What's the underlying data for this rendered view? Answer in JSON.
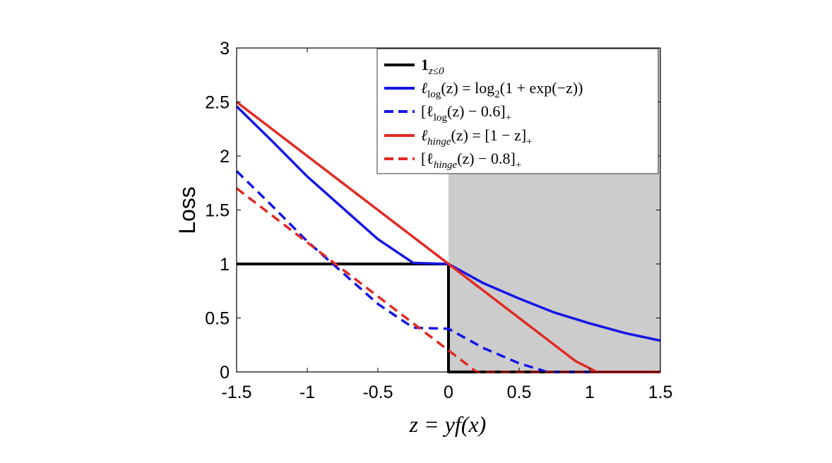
{
  "chart_data": {
    "type": "line",
    "xlabel": "z = yf(x)",
    "ylabel": "Loss",
    "xlim": [
      -1.5,
      1.5
    ],
    "ylim": [
      0,
      3
    ],
    "xticks": [
      "-1.5",
      "-1",
      "-0.5",
      "0",
      "0.5",
      "1",
      "1.5"
    ],
    "yticks": [
      "0",
      "0.5",
      "1",
      "1.5",
      "2",
      "2.5",
      "3"
    ],
    "shaded_region": {
      "x": [
        0,
        1.5
      ],
      "color": "#cccccc"
    },
    "legend_position": "top-right",
    "series": [
      {
        "name": "1_{z≤0}",
        "color": "#000000",
        "style": "solid",
        "x": [
          -1.5,
          0,
          0,
          1.5
        ],
        "y": [
          1,
          1,
          0,
          0
        ]
      },
      {
        "name": "ℓ_log(z) = log₂(1 + exp(−z))",
        "color": "#1515e6",
        "style": "solid",
        "x": [
          -1.5,
          -1.25,
          -1.0,
          -0.75,
          -0.5,
          -0.25,
          0,
          0.25,
          0.5,
          0.75,
          1.0,
          1.25,
          1.5
        ],
        "y": [
          2.46,
          2.14,
          1.81,
          1.52,
          1.23,
          1.01,
          1.0,
          0.82,
          0.68,
          0.55,
          0.45,
          0.36,
          0.29
        ]
      },
      {
        "name": "[ℓ_log(z) − 0.6]₊",
        "color": "#1515e6",
        "style": "dashed",
        "x": [
          -1.5,
          -1.25,
          -1.0,
          -0.75,
          -0.5,
          -0.25,
          0,
          0.25,
          0.5,
          0.7,
          1.5
        ],
        "y": [
          1.86,
          1.54,
          1.21,
          0.92,
          0.63,
          0.41,
          0.4,
          0.22,
          0.08,
          0.0,
          0.0
        ]
      },
      {
        "name": "ℓ_hinge(z) = [1 − z]₊",
        "color": "#e02a24",
        "style": "solid",
        "x": [
          -1.5,
          0,
          0.9,
          1.05,
          1.5
        ],
        "y": [
          2.5,
          1.0,
          0.1,
          0.0,
          0.0
        ]
      },
      {
        "name": "[ℓ_hinge(z) − 0.8]₊",
        "color": "#e02a24",
        "style": "dashed",
        "x": [
          -1.5,
          0,
          0.2,
          1.5
        ],
        "y": [
          1.7,
          0.2,
          0.0,
          0.0
        ]
      }
    ]
  },
  "legend": {
    "l1_main": "1",
    "l1_sub": "z≤0",
    "l2_pre": "ℓ",
    "l2_sub1": "log",
    "l2_mid": "(z) = log",
    "l2_sub2": "2",
    "l2_post": "(1 + exp(−z))",
    "l3_pre": "[ℓ",
    "l3_sub": "log",
    "l3_post": "(z) − 0.6]",
    "l3_plus": "+",
    "l4_pre": "ℓ",
    "l4_sub": "hinge",
    "l4_post": "(z) = [1 − z]",
    "l4_plus": "+",
    "l5_pre": "[ℓ",
    "l5_sub": "hinge",
    "l5_post": "(z) − 0.8]",
    "l5_plus": "+"
  }
}
